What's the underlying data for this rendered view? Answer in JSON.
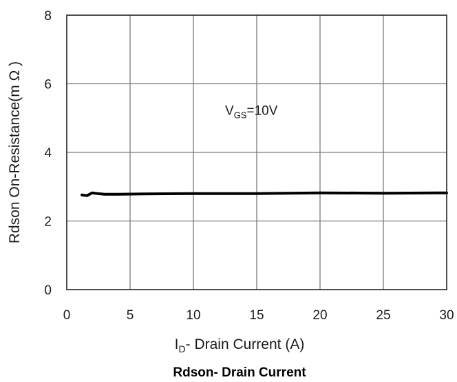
{
  "chart_data": {
    "type": "line",
    "title": "Rdson- Drain Current",
    "xlabel": {
      "main": "I",
      "sub": "D",
      "rest": "- Drain Current (A)"
    },
    "ylabel": "Rdson On-Resistance(m Ω )",
    "xlim": [
      0,
      30
    ],
    "ylim": [
      0,
      8
    ],
    "xticks": [
      "0",
      "5",
      "10",
      "15",
      "20",
      "25",
      "30"
    ],
    "yticks": [
      "0",
      "2",
      "4",
      "6",
      "8"
    ],
    "grid": true,
    "annotation": {
      "main": "V",
      "sub": "GS",
      "rest": "=10V",
      "x": 12.5,
      "y": 5.1
    },
    "series": [
      {
        "color": "#000000",
        "x": [
          1.2,
          1.6,
          2.0,
          2.4,
          3.0,
          4.0,
          6.0,
          10.0,
          15.0,
          20.0,
          25.0,
          30.0
        ],
        "y": [
          2.76,
          2.74,
          2.82,
          2.8,
          2.78,
          2.78,
          2.79,
          2.8,
          2.8,
          2.82,
          2.81,
          2.82
        ]
      }
    ]
  }
}
